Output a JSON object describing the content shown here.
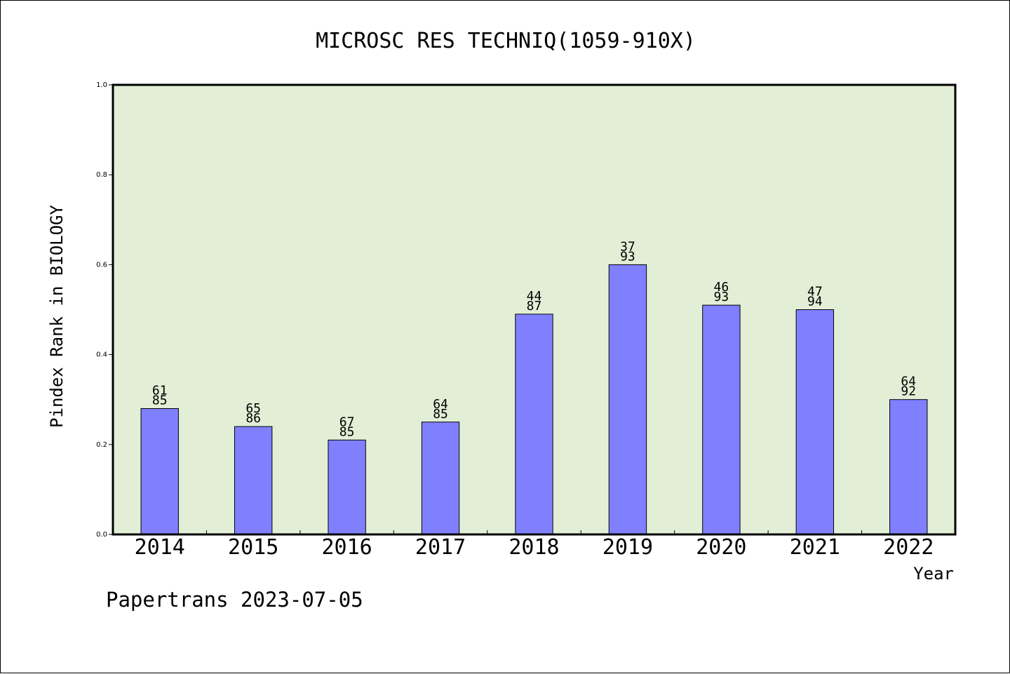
{
  "chart_data": {
    "type": "bar",
    "title": "MICROSC RES TECHNIQ(1059-910X)",
    "xlabel": "Year",
    "ylabel": "Pindex Rank in BIOLOGY",
    "categories": [
      "2014",
      "2015",
      "2016",
      "2017",
      "2018",
      "2019",
      "2020",
      "2021",
      "2022"
    ],
    "values": [
      0.28,
      0.24,
      0.21,
      0.25,
      0.49,
      0.6,
      0.51,
      0.5,
      0.3
    ],
    "bar_labels": [
      {
        "rank": "61",
        "total": "85"
      },
      {
        "rank": "65",
        "total": "86"
      },
      {
        "rank": "67",
        "total": "85"
      },
      {
        "rank": "64",
        "total": "85"
      },
      {
        "rank": "44",
        "total": "87"
      },
      {
        "rank": "37",
        "total": "93"
      },
      {
        "rank": "46",
        "total": "93"
      },
      {
        "rank": "47",
        "total": "94"
      },
      {
        "rank": "64",
        "total": "92"
      }
    ],
    "ylim": [
      0,
      1.0
    ],
    "yticks": [
      "0.0",
      "0.2",
      "0.4",
      "0.6",
      "0.8",
      "1.0"
    ],
    "grid": false,
    "colors": {
      "bar": "#8080ff",
      "plot_background": "#e2efd6",
      "axis": "#000000"
    }
  },
  "footer": "Papertrans 2023-07-05"
}
